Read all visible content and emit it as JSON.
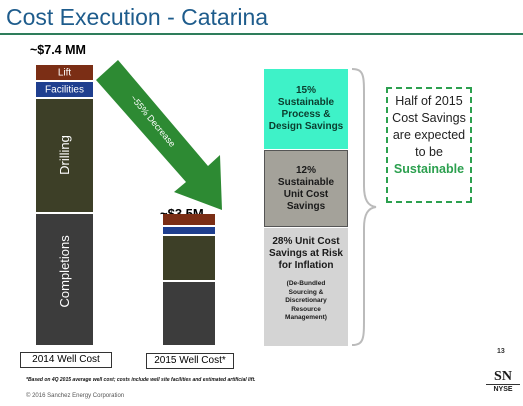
{
  "title": "Cost Execution - Catarina",
  "chart_data": {
    "type": "bar",
    "stacked": true,
    "categories": [
      "2014 Well Cost",
      "2015 Well Cost*"
    ],
    "totals": [
      "~$7.4 MM",
      "~$3.5M"
    ],
    "series": [
      {
        "name": "Completions",
        "color": "#3c3c3c",
        "values": [
          3.5,
          1.7
        ]
      },
      {
        "name": "Drilling",
        "color": "#3d3f27",
        "values": [
          3.0,
          1.2
        ]
      },
      {
        "name": "Facilities",
        "color": "#1f3f8f",
        "values": [
          0.45,
          0.26
        ]
      },
      {
        "name": "Lift",
        "color": "#7b2e15",
        "values": [
          0.45,
          0.34
        ]
      }
    ],
    "arrow_label": "~55% Decrease"
  },
  "savings": [
    {
      "headline": "15% Sustainable Process & Design Savings",
      "bg": "#3ef2c8"
    },
    {
      "headline": "12% Sustainable Unit Cost Savings",
      "bg": "#a4a29a"
    },
    {
      "headline": "28% Unit Cost Savings at Risk for Inflation",
      "detail": "(De-Bundled Sourcing & Discretionary Resource Management)",
      "bg": "#d4d4d4"
    }
  ],
  "callout": {
    "text": "Half of 2015 Cost Savings are expected to be",
    "highlight": "Sustainable"
  },
  "footnote": "*Based on 4Q 2015 average well cost; costs include well site facilities and estimated artificial lift.",
  "copyright": "© 2016 Sanchez Energy Corporation",
  "page_number": "13",
  "logo": {
    "mark": "SN",
    "exchange": "NYSE"
  },
  "colors": {
    "title": "#1e5c8c",
    "arrow": "#2d8a33",
    "accent_green": "#2ca04f"
  }
}
